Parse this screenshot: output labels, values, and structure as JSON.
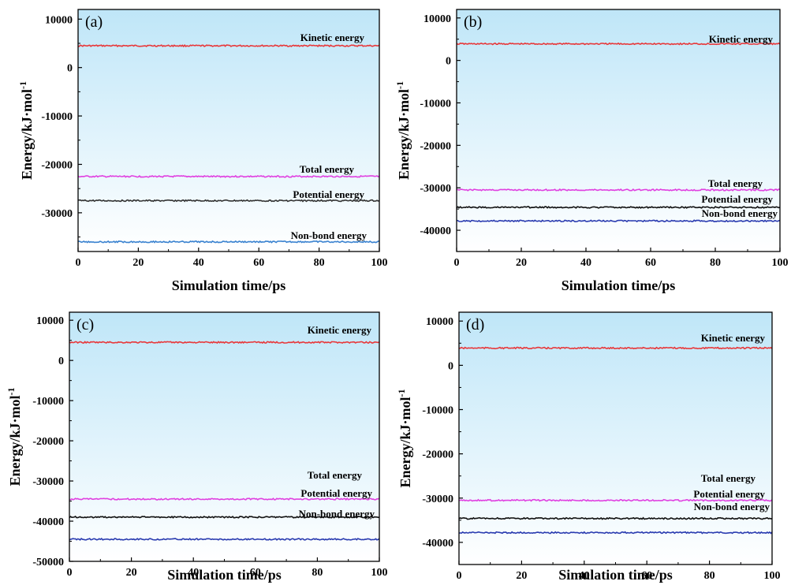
{
  "chart_data": [
    {
      "type": "line",
      "panel_label": "(a)",
      "xlabel": "Simulation time/ps",
      "ylabel": "Energy/kJ·mol",
      "ylabel_superscript": "-1",
      "xlim": [
        0,
        100
      ],
      "ylim": [
        -38000,
        12000
      ],
      "xticks": [
        0,
        20,
        40,
        60,
        80,
        100
      ],
      "yticks": [
        10000,
        0,
        -10000,
        -20000,
        -30000
      ],
      "series": [
        {
          "name": "Kinetic energy",
          "color": "#e8383a",
          "x": [
            0,
            100
          ],
          "y": [
            4500,
            4500
          ]
        },
        {
          "name": "Total energy",
          "color": "#e040e0",
          "x": [
            0,
            100
          ],
          "y": [
            -22500,
            -22500
          ]
        },
        {
          "name": "Potential energy",
          "color": "#333333",
          "x": [
            0,
            100
          ],
          "y": [
            -27500,
            -27500
          ]
        },
        {
          "name": "Non-bond energy",
          "color": "#3a82d0",
          "x": [
            0,
            100
          ],
          "y": [
            -36000,
            -36000
          ]
        }
      ]
    },
    {
      "type": "line",
      "panel_label": "(b)",
      "xlabel": "Simulation time/ps",
      "ylabel": "Energy/kJ·mol",
      "ylabel_superscript": "-1",
      "xlim": [
        0,
        100
      ],
      "ylim": [
        -45000,
        12000
      ],
      "xticks": [
        0,
        20,
        40,
        60,
        80,
        100
      ],
      "yticks": [
        10000,
        0,
        -10000,
        -20000,
        -30000,
        -40000
      ],
      "series": [
        {
          "name": "Kinetic energy",
          "color": "#e8383a",
          "x": [
            0,
            100
          ],
          "y": [
            3900,
            3900
          ]
        },
        {
          "name": "Total energy",
          "color": "#e040e0",
          "x": [
            0,
            100
          ],
          "y": [
            -30500,
            -30500
          ]
        },
        {
          "name": "Potential energy",
          "color": "#111111",
          "x": [
            0,
            100
          ],
          "y": [
            -34600,
            -34600
          ]
        },
        {
          "name": "Non-bond energy",
          "color": "#2a3bb0",
          "x": [
            0,
            100
          ],
          "y": [
            -37800,
            -37800
          ]
        }
      ]
    },
    {
      "type": "line",
      "panel_label": "(c)",
      "xlabel": "Simulation time/ps",
      "ylabel": "Energy/kJ·mol",
      "ylabel_superscript": "-1",
      "xlim": [
        0,
        100
      ],
      "ylim": [
        -50000,
        12000
      ],
      "xticks": [
        0,
        20,
        40,
        60,
        80,
        100
      ],
      "yticks": [
        10000,
        0,
        -10000,
        -20000,
        -30000,
        -40000,
        -50000
      ],
      "series": [
        {
          "name": "Kinetic energy",
          "color": "#e8383a",
          "x": [
            0,
            100
          ],
          "y": [
            4500,
            4500
          ]
        },
        {
          "name": "Total energy",
          "color": "#e040e0",
          "x": [
            0,
            100
          ],
          "y": [
            -34500,
            -34500
          ]
        },
        {
          "name": "Potential energy",
          "color": "#111111",
          "x": [
            0,
            100
          ],
          "y": [
            -39000,
            -39000
          ]
        },
        {
          "name": "Non-bond energy",
          "color": "#2a3bb0",
          "x": [
            0,
            100
          ],
          "y": [
            -44500,
            -44500
          ]
        }
      ]
    },
    {
      "type": "line",
      "panel_label": "(d)",
      "xlabel": "Simulation time/ps",
      "ylabel": "Energy/kJ·mol",
      "ylabel_superscript": "-1",
      "xlim": [
        0,
        100
      ],
      "ylim": [
        -45000,
        12000
      ],
      "xticks": [
        0,
        20,
        40,
        60,
        80,
        100
      ],
      "yticks": [
        10000,
        0,
        -10000,
        -20000,
        -30000,
        -40000
      ],
      "series": [
        {
          "name": "Kinetic energy",
          "color": "#e8383a",
          "x": [
            0,
            100
          ],
          "y": [
            3900,
            3900
          ]
        },
        {
          "name": "Total energy",
          "color": "#e040e0",
          "x": [
            0,
            100
          ],
          "y": [
            -30500,
            -30500
          ]
        },
        {
          "name": "Potential energy",
          "color": "#111111",
          "x": [
            0,
            100
          ],
          "y": [
            -34600,
            -34600
          ]
        },
        {
          "name": "Non-bond energy",
          "color": "#2a3bb0",
          "x": [
            0,
            100
          ],
          "y": [
            -37800,
            -37800
          ]
        }
      ]
    }
  ]
}
